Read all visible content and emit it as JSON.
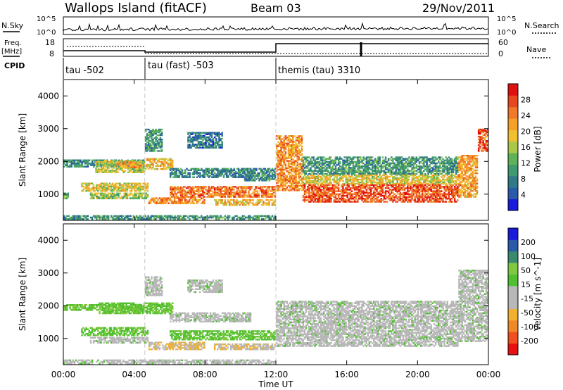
{
  "header": {
    "station": "Wallops Island (fitACF)",
    "beam": "Beam 03",
    "date": "29/Nov/2011"
  },
  "strips": {
    "nsky_label": "N.Sky",
    "nsky_ticks": [
      "10^5",
      "10^0"
    ],
    "nsearch_label": "N.Search",
    "nsearch_ticks": [
      "10^5",
      "10^0"
    ],
    "freq_label_1": "Freq.",
    "freq_label_2": "[MHz]",
    "freq_ticks": [
      "18",
      "8"
    ],
    "nave_label": "Nave",
    "nave_ticks": [
      "60",
      "0"
    ],
    "cpid_label": "CPID",
    "cpid_segments": [
      {
        "label": "tau -502",
        "start_hour": 0
      },
      {
        "label": "tau (fast) -503",
        "start_hour": 4.6
      },
      {
        "label": "themis (tau) 3310",
        "start_hour": 12
      }
    ]
  },
  "colors": {
    "power_scale": [
      "#1a1adc",
      "#2a5aa8",
      "#2f7a86",
      "#3f9a70",
      "#60b25a",
      "#a8c84a",
      "#f0c030",
      "#f5a028",
      "#f07828",
      "#e84820",
      "#e01010"
    ],
    "velocity_scale": [
      "#e81010",
      "#f05020",
      "#f08828",
      "#f0b030",
      "#b8b8b8",
      "#b8b8b8",
      "#50c030",
      "#80c840",
      "#3a8a70",
      "#2a5aa8",
      "#1a1adc"
    ]
  },
  "chart_data": [
    {
      "type": "heatmap",
      "panel": "power",
      "ylabel": "Slant Range [km]",
      "colorbar_label": "Power [dB]",
      "colorbar_ticks": [
        "28",
        "24",
        "20",
        "16",
        "12",
        "8",
        "4"
      ],
      "clim": [
        0,
        32
      ],
      "xlim_hours": [
        0,
        24
      ],
      "ylim": [
        200,
        4500
      ],
      "yticks": [
        "4000",
        "3000",
        "2000",
        "1000"
      ],
      "yticks_values": [
        4000,
        3000,
        2000,
        1000
      ],
      "bands": [
        {
          "t0": 0,
          "t1": 4.6,
          "r0": 1820,
          "r1": 2060,
          "p": 9
        },
        {
          "t0": 0,
          "t1": 0.3,
          "r0": 850,
          "r1": 1050,
          "p": 14
        },
        {
          "t0": 1.8,
          "t1": 4.6,
          "r0": 1650,
          "r1": 2050,
          "p": 16
        },
        {
          "t0": 3.0,
          "t1": 4.4,
          "r0": 1800,
          "r1": 2000,
          "p": 22
        },
        {
          "t0": 4.6,
          "t1": 6.2,
          "r0": 1750,
          "r1": 2100,
          "p": 20
        },
        {
          "t0": 6.0,
          "t1": 10.6,
          "r0": 1500,
          "r1": 1800,
          "p": 8
        },
        {
          "t0": 1.0,
          "t1": 4.8,
          "r0": 1080,
          "r1": 1350,
          "p": 18
        },
        {
          "t0": 1.5,
          "t1": 4.8,
          "r0": 850,
          "r1": 1050,
          "p": 15
        },
        {
          "t0": 4.8,
          "t1": 8.0,
          "r0": 700,
          "r1": 900,
          "p": 24
        },
        {
          "t0": 6.0,
          "t1": 12.0,
          "r0": 900,
          "r1": 1250,
          "p": 25
        },
        {
          "t0": 8.5,
          "t1": 12.0,
          "r0": 650,
          "r1": 850,
          "p": 20
        },
        {
          "t0": 4.6,
          "t1": 5.6,
          "r0": 2300,
          "r1": 3000,
          "p": 10
        },
        {
          "t0": 7.0,
          "t1": 9.0,
          "r0": 2400,
          "r1": 2900,
          "p": 7
        },
        {
          "t0": 10.2,
          "t1": 12.0,
          "r0": 1400,
          "r1": 1800,
          "p": 9
        },
        {
          "t0": 12.0,
          "t1": 13.5,
          "r0": 1100,
          "r1": 2800,
          "p": 23
        },
        {
          "t0": 13.5,
          "t1": 22.3,
          "r0": 1600,
          "r1": 2150,
          "p": 10
        },
        {
          "t0": 13.5,
          "t1": 22.3,
          "r0": 1300,
          "r1": 1600,
          "p": 18
        },
        {
          "t0": 13.5,
          "t1": 22.3,
          "r0": 750,
          "r1": 1300,
          "p": 27
        },
        {
          "t0": 22.3,
          "t1": 23.4,
          "r0": 900,
          "r1": 2200,
          "p": 22
        },
        {
          "t0": 23.4,
          "t1": 24.0,
          "r0": 2300,
          "r1": 3000,
          "p": 27
        },
        {
          "t0": 0,
          "t1": 12.0,
          "r0": 220,
          "r1": 360,
          "p": 10
        }
      ]
    },
    {
      "type": "heatmap",
      "panel": "velocity",
      "ylabel": "Slant Range [km]",
      "xlabel": "Time UT",
      "colorbar_label": "Velocity [m s^-1]",
      "colorbar_ticks": [
        "200",
        "100",
        "50",
        "15",
        "-15",
        "-50",
        "-100",
        "-200"
      ],
      "clim": [
        -250,
        250
      ],
      "xlim_hours": [
        0,
        24
      ],
      "xticks": [
        "00:00",
        "04:00",
        "08:00",
        "12:00",
        "16:00",
        "20:00",
        "00:00"
      ],
      "xticks_hours": [
        0,
        4,
        8,
        12,
        16,
        20,
        24
      ],
      "ylim": [
        200,
        4500
      ],
      "yticks": [
        "4000",
        "3000",
        "2000",
        "1000"
      ],
      "yticks_values": [
        4000,
        3000,
        2000,
        1000
      ],
      "bands": [
        {
          "t0": 0,
          "t1": 4.6,
          "r0": 1850,
          "r1": 2050,
          "v": 60
        },
        {
          "t0": 2.0,
          "t1": 6.2,
          "r0": 1750,
          "r1": 2100,
          "v": 70
        },
        {
          "t0": 6.0,
          "t1": 10.6,
          "r0": 1500,
          "r1": 1800,
          "v": 0
        },
        {
          "t0": 1.0,
          "t1": 4.8,
          "r0": 1080,
          "r1": 1350,
          "v": 60
        },
        {
          "t0": 1.5,
          "t1": 4.8,
          "r0": 850,
          "r1": 1050,
          "v": 0
        },
        {
          "t0": 4.8,
          "t1": 8.0,
          "r0": 650,
          "r1": 900,
          "v": -70
        },
        {
          "t0": 6.0,
          "t1": 12.0,
          "r0": 950,
          "r1": 1250,
          "v": 60
        },
        {
          "t0": 8.5,
          "t1": 12.0,
          "r0": 650,
          "r1": 850,
          "v": -60
        },
        {
          "t0": 4.6,
          "t1": 5.6,
          "r0": 2300,
          "r1": 2900,
          "v": 0
        },
        {
          "t0": 7.0,
          "t1": 9.0,
          "r0": 2400,
          "r1": 2800,
          "v": 0
        },
        {
          "t0": 12.0,
          "t1": 22.3,
          "r0": 750,
          "r1": 2150,
          "v": 0
        },
        {
          "t0": 22.3,
          "t1": 24.0,
          "r0": 900,
          "r1": 3100,
          "v": 0
        },
        {
          "t0": 0,
          "t1": 12.0,
          "r0": 220,
          "r1": 360,
          "v": 0
        }
      ]
    }
  ]
}
